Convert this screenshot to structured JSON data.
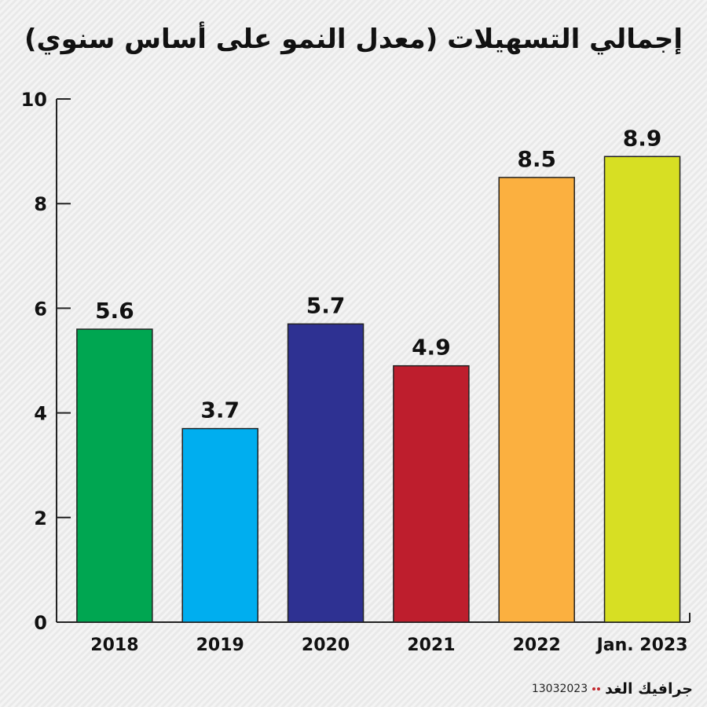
{
  "chart_data": {
    "type": "bar",
    "title": "إجمالي التسهيلات (معدل النمو على أساس سنوي)",
    "categories": [
      "2018",
      "2019",
      "2020",
      "2021",
      "2022",
      "Jan. 2023"
    ],
    "values": [
      5.6,
      3.7,
      5.7,
      4.9,
      8.5,
      8.9
    ],
    "value_labels": [
      "5.6",
      "3.7",
      "5.7",
      "4.9",
      "8.5",
      "8.9"
    ],
    "colors": [
      "#00a651",
      "#00aeef",
      "#2e3192",
      "#be1e2d",
      "#fbb040",
      "#d7df23"
    ],
    "ylim": [
      0,
      10
    ],
    "yticks": [
      0,
      2,
      4,
      6,
      8,
      10
    ],
    "ytick_labels": [
      "0",
      "2",
      "4",
      "6",
      "8",
      "10"
    ],
    "grid": false,
    "legend": "none"
  },
  "footer": {
    "code": "13032023",
    "brand": "جرافيك الغد"
  }
}
